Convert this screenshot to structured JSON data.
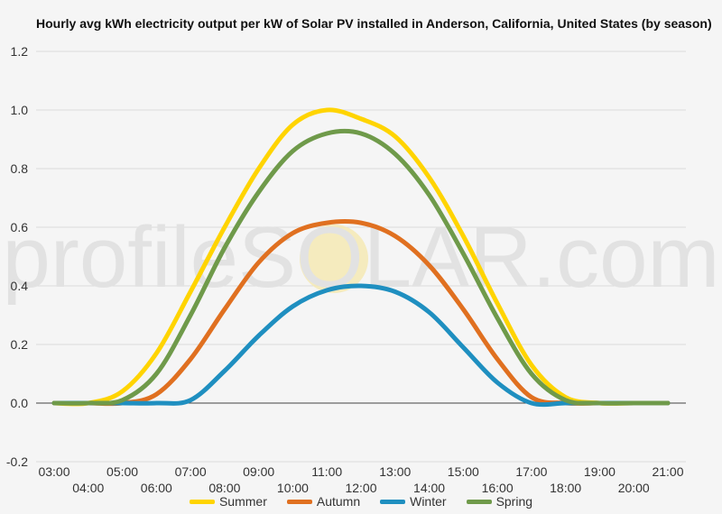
{
  "chart_data": {
    "type": "line",
    "title": "Hourly avg kWh electricity output per kW of Solar PV installed in Anderson, California, United States (by season)",
    "watermark": "profileSOLAR.com",
    "x": [
      3,
      4,
      5,
      6,
      7,
      8,
      9,
      10,
      11,
      12,
      13,
      14,
      15,
      16,
      17,
      18,
      19,
      20,
      21
    ],
    "x_tick_labels": [
      "03:00",
      "04:00",
      "05:00",
      "06:00",
      "07:00",
      "08:00",
      "09:00",
      "10:00",
      "11:00",
      "12:00",
      "13:00",
      "14:00",
      "15:00",
      "16:00",
      "17:00",
      "18:00",
      "19:00",
      "20:00",
      "21:00"
    ],
    "ylim": [
      -0.2,
      1.2
    ],
    "y_ticks": [
      "-0.2",
      "0.0",
      "0.2",
      "0.4",
      "0.6",
      "0.8",
      "1.0",
      "1.2"
    ],
    "grid": true,
    "legend_position": "bottom",
    "series": [
      {
        "name": "Summer",
        "color": "#ffd400",
        "values": [
          0,
          0,
          0.04,
          0.17,
          0.38,
          0.6,
          0.8,
          0.95,
          1.0,
          0.97,
          0.91,
          0.77,
          0.57,
          0.34,
          0.13,
          0.02,
          0,
          0,
          0
        ]
      },
      {
        "name": "Autumn",
        "color": "#e07020",
        "values": [
          0,
          0,
          0,
          0.03,
          0.15,
          0.32,
          0.48,
          0.58,
          0.615,
          0.615,
          0.57,
          0.47,
          0.32,
          0.15,
          0.02,
          0,
          0,
          0,
          0
        ]
      },
      {
        "name": "Winter",
        "color": "#1f8fc0",
        "values": [
          0,
          0,
          0,
          0,
          0.01,
          0.11,
          0.23,
          0.33,
          0.385,
          0.4,
          0.38,
          0.31,
          0.19,
          0.07,
          0,
          0,
          0,
          0,
          0
        ]
      },
      {
        "name": "Spring",
        "color": "#6f9a4a",
        "values": [
          0,
          0,
          0.01,
          0.1,
          0.3,
          0.53,
          0.72,
          0.86,
          0.92,
          0.92,
          0.85,
          0.71,
          0.51,
          0.29,
          0.1,
          0.01,
          0,
          0,
          0
        ]
      }
    ]
  }
}
